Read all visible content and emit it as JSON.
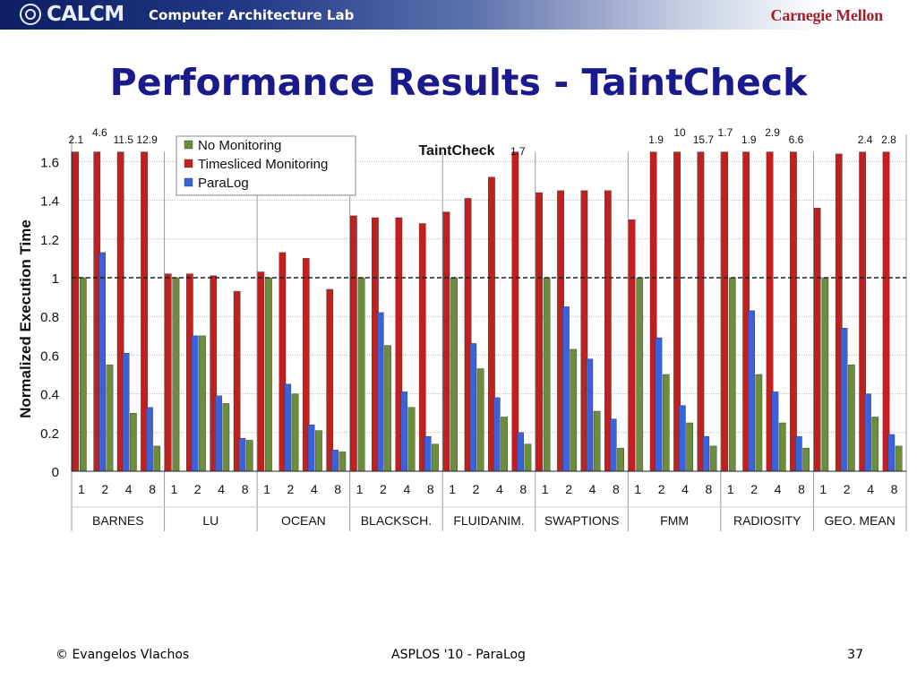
{
  "header": {
    "logo_text": "CALCM",
    "lab_name": "Computer Architecture Lab",
    "university": "Carnegie Mellon"
  },
  "slide": {
    "title": "Performance Results - TaintCheck"
  },
  "footer": {
    "author": "© Evangelos Vlachos",
    "venue": "ASPLOS '10 - ParaLog",
    "page_number": "37"
  },
  "colors": {
    "no_monitoring": "#6b8d3c",
    "timesliced": "#c21f1f",
    "paralog": "#3a62dd"
  },
  "chart_data": {
    "type": "bar",
    "title": "TaintCheck",
    "ylabel": "Normalized Execution Time",
    "xlabel": "",
    "ylim": [
      0,
      1.65
    ],
    "yticks": [
      0,
      0.2,
      0.4,
      0.6,
      0.8,
      1,
      1.2,
      1.4,
      1.6
    ],
    "ytick_labels": [
      "0",
      "0.2",
      "0.4",
      "0.6",
      "0.8",
      "1",
      "1.2",
      "1.4",
      "1.6"
    ],
    "reference_line": 1,
    "grid": true,
    "legend_position": "top-left",
    "groups": [
      "BARNES",
      "LU",
      "OCEAN",
      "BLACKSCH.",
      "FLUIDANIM.",
      "SWAPTIONS",
      "FMM",
      "RADIOSITY",
      "GEO. MEAN"
    ],
    "threads": [
      "1",
      "2",
      "4",
      "8"
    ],
    "series": [
      {
        "name": "No Monitoring",
        "values": [
          [
            1.0,
            0.55,
            0.3,
            0.13
          ],
          [
            1.0,
            0.7,
            0.35,
            0.16
          ],
          [
            1.0,
            0.4,
            0.21,
            0.1
          ],
          [
            1.0,
            0.65,
            0.33,
            0.14
          ],
          [
            1.0,
            0.53,
            0.28,
            0.14
          ],
          [
            1.0,
            0.63,
            0.31,
            0.12
          ],
          [
            1.0,
            0.5,
            0.25,
            0.13
          ],
          [
            1.0,
            0.5,
            0.25,
            0.12
          ],
          [
            1.0,
            0.55,
            0.28,
            0.13
          ]
        ]
      },
      {
        "name": "Timesliced Monitoring",
        "values": [
          [
            2.1,
            4.6,
            11.5,
            12.9
          ],
          [
            1.02,
            1.02,
            1.01,
            0.93
          ],
          [
            1.03,
            1.13,
            1.1,
            0.94
          ],
          [
            1.32,
            1.31,
            1.31,
            1.28
          ],
          [
            1.34,
            1.41,
            1.52,
            1.7
          ],
          [
            1.44,
            1.45,
            1.45,
            1.45
          ],
          [
            1.3,
            1.9,
            10,
            15.7
          ],
          [
            1.7,
            1.9,
            2.9,
            6.6
          ],
          [
            1.36,
            1.64,
            2.4,
            2.8
          ]
        ]
      },
      {
        "name": "ParaLog",
        "values": [
          [
            null,
            1.13,
            0.61,
            0.33
          ],
          [
            null,
            0.7,
            0.39,
            0.17
          ],
          [
            null,
            0.45,
            0.24,
            0.11
          ],
          [
            null,
            0.82,
            0.41,
            0.18
          ],
          [
            null,
            0.66,
            0.38,
            0.2
          ],
          [
            null,
            0.85,
            0.58,
            0.27
          ],
          [
            null,
            0.69,
            0.34,
            0.18
          ],
          [
            null,
            0.83,
            0.41,
            0.18
          ],
          [
            null,
            0.74,
            0.4,
            0.19
          ]
        ]
      }
    ],
    "offscale_labels": [
      {
        "text": "2.1",
        "group": 0,
        "thread": 0,
        "row": "low"
      },
      {
        "text": "4.6",
        "group": 0,
        "thread": 1,
        "row": "high"
      },
      {
        "text": "11.5",
        "group": 0,
        "thread": 2,
        "row": "low"
      },
      {
        "text": "12.9",
        "group": 0,
        "thread": 3,
        "row": "low"
      },
      {
        "text": "1.7",
        "group": 4,
        "thread": 3,
        "row": "lower"
      },
      {
        "text": "1.9",
        "group": 6,
        "thread": 1,
        "row": "low"
      },
      {
        "text": "10",
        "group": 6,
        "thread": 2,
        "row": "high"
      },
      {
        "text": "15.7",
        "group": 6,
        "thread": 3,
        "row": "low"
      },
      {
        "text": "1.7",
        "group": 7,
        "thread": 0,
        "row": "high"
      },
      {
        "text": "1.9",
        "group": 7,
        "thread": 1,
        "row": "low"
      },
      {
        "text": "2.9",
        "group": 7,
        "thread": 2,
        "row": "high"
      },
      {
        "text": "6.6",
        "group": 7,
        "thread": 3,
        "row": "low"
      },
      {
        "text": "2.4",
        "group": 8,
        "thread": 2,
        "row": "low"
      },
      {
        "text": "2.8",
        "group": 8,
        "thread": 3,
        "row": "low"
      }
    ]
  }
}
